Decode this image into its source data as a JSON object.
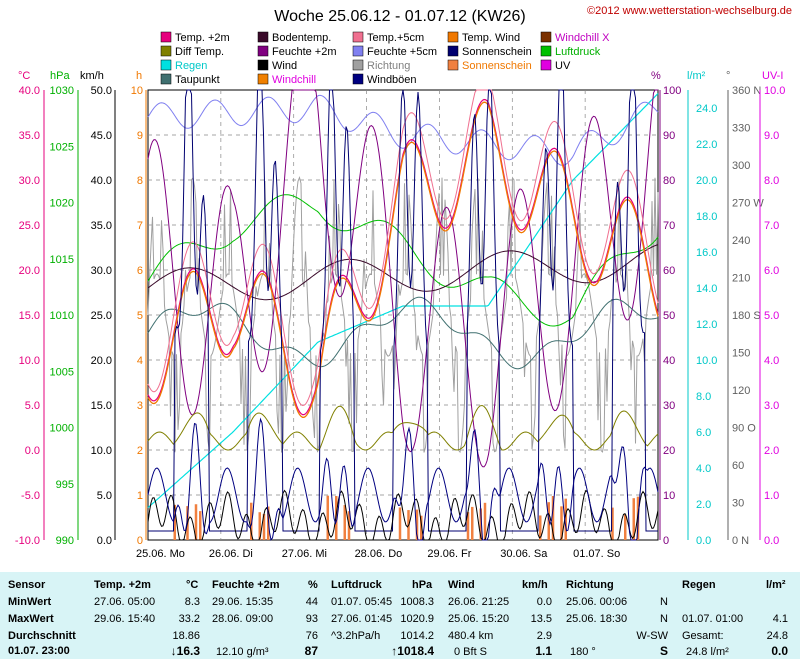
{
  "header": {
    "title": "Woche 25.06.12 - 01.07.12 (KW26)",
    "copyright": "©2012 www.wetterstation-wechselburg.de"
  },
  "legend": [
    {
      "label": "Temp. +2m",
      "color": "#e6007e"
    },
    {
      "label": "Bodentemp.",
      "color": "#3a0a2a"
    },
    {
      "label": "Temp.+5cm",
      "color": "#f07090"
    },
    {
      "label": "Temp. Wind",
      "color": "#f07800"
    },
    {
      "label": "Windchill X",
      "color": "#7a3000"
    },
    {
      "label": "Diff Temp.",
      "color": "#808000"
    },
    {
      "label": "Feuchte +2m",
      "color": "#800080"
    },
    {
      "label": "Feuchte +5cm",
      "color": "#8080f0"
    },
    {
      "label": "Sonnenschein",
      "color": "#000070"
    },
    {
      "label": "Luftdruck",
      "color": "#00c000"
    },
    {
      "label": "Regen",
      "color": "#00e0e0"
    },
    {
      "label": "Wind",
      "color": "#000000"
    },
    {
      "label": "Richtung",
      "color": "#a0a0a0"
    },
    {
      "label": "Sonnenschein",
      "color": "#f08040"
    },
    {
      "label": "UV",
      "color": "#e000e0"
    },
    {
      "label": "Taupunkt",
      "color": "#407070"
    },
    {
      "label": "Windchill",
      "color": "#f08000"
    },
    {
      "label": "Windböen",
      "color": "#000080"
    }
  ],
  "axes": {
    "unit_c": "°C",
    "unit_hpa": "hPa",
    "unit_kmh": "km/h",
    "unit_h": "h",
    "unit_pct": "%",
    "unit_lm2": "l/m²",
    "unit_deg": "°",
    "unit_uv": "UV-I",
    "temp_ticks": [
      "40.0",
      "35.0",
      "30.0",
      "25.0",
      "20.0",
      "15.0",
      "10.0",
      "5.0",
      "0.0",
      "-5.0",
      "-10.0"
    ],
    "hpa_ticks": [
      "1030",
      "1025",
      "1020",
      "1015",
      "1010",
      "1005",
      "1000",
      "995",
      "990"
    ],
    "kmh_ticks": [
      "50.0",
      "45.0",
      "40.0",
      "35.0",
      "30.0",
      "25.0",
      "20.0",
      "15.0",
      "10.0",
      "5.0",
      "0.0"
    ],
    "h_ticks": [
      "10",
      "9",
      "8",
      "7",
      "6",
      "5",
      "4",
      "3",
      "2",
      "1",
      "0"
    ],
    "pct_ticks": [
      "100",
      "90",
      "80",
      "70",
      "60",
      "50",
      "40",
      "30",
      "20",
      "10",
      "0"
    ],
    "rain_ticks": [
      "24.0",
      "22.0",
      "20.0",
      "18.0",
      "16.0",
      "14.0",
      "12.0",
      "10.0",
      "8.0",
      "6.0",
      "4.0",
      "2.0",
      "0.0"
    ],
    "dir_ticks": [
      "360 N",
      "330",
      "300",
      "270 W",
      "240",
      "210",
      "180 S",
      "150",
      "120",
      "90  O",
      "60",
      "30",
      "0   N"
    ],
    "uv_ticks": [
      "10.0",
      "9.0",
      "8.0",
      "7.0",
      "6.0",
      "5.0",
      "4.0",
      "3.0",
      "2.0",
      "1.0",
      "0.0"
    ],
    "days": [
      "25.06.  Mo",
      "26.06.  Di",
      "27.06.  Mi",
      "28.06.  Do",
      "29.06.  Fr",
      "30.06.  Sa",
      "01.07.  So"
    ]
  },
  "chart_data": {
    "type": "line",
    "title": "Woche 25.06.12 - 01.07.12 (KW26)",
    "x": [
      "25.06.",
      "26.06.",
      "27.06.",
      "28.06.",
      "29.06.",
      "30.06.",
      "01.07."
    ],
    "series": [
      {
        "name": "Temp. +2m",
        "unit": "°C",
        "values": [
          11,
          17,
          8.3,
          28,
          33.2,
          26,
          20
        ]
      },
      {
        "name": "Feuchte +2m",
        "unit": "%",
        "values": [
          62,
          50,
          93,
          48,
          44,
          60,
          86
        ]
      },
      {
        "name": "Luftdruck",
        "unit": "hPa",
        "values": [
          1013,
          1018,
          1020,
          1016,
          1012,
          1010,
          1018.4
        ]
      },
      {
        "name": "Regen",
        "unit": "l/m²",
        "values": [
          1.8,
          6.0,
          11.0,
          13.0,
          13.0,
          20.0,
          24.8
        ]
      },
      {
        "name": "Feuchte +5cm",
        "unit": "%",
        "values": [
          94,
          95,
          96,
          90,
          88,
          86,
          96
        ]
      }
    ]
  },
  "stats": {
    "headers": {
      "sensor": "Sensor",
      "temp": "Temp. +2m",
      "temp_u": "°C",
      "hum": "Feuchte +2m",
      "hum_u": "%",
      "press": "Luftdruck",
      "press_u": "hPa",
      "wind": "Wind",
      "wind_u": "km/h",
      "dir": "Richtung",
      "rain": "Regen",
      "rain_u": "l/m²"
    },
    "rows": {
      "min_label": "MinWert",
      "max_label": "MaxWert",
      "avg_label": "Durchschnitt",
      "now_label": "01.07. 23:00"
    },
    "temp": {
      "min_t": "27.06.  05:00",
      "min_v": "8.3",
      "max_t": "29.06.  15:40",
      "max_v": "33.2",
      "avg": "18.86",
      "now": "↓16.3"
    },
    "hum": {
      "min_t": "29.06.  15:35",
      "min_v": "44",
      "max_t": "28.06.  09:00",
      "max_v": "93",
      "avg": "76",
      "extra": "12.10 g/m³",
      "now": "87"
    },
    "press": {
      "min_t": "01.07.  05:45",
      "min_v": "1008.3",
      "max_t": "27.06.  01:45",
      "max_v": "1020.9",
      "trend": "^3.2hPa/h",
      "avg": "1014.2",
      "now": "↑1018.4"
    },
    "wind": {
      "min_t": "26.06.  21:25",
      "min_v": "0.0",
      "max_t": "25.06.  15:20",
      "max_v": "13.5",
      "dist": "480.4 km",
      "avg": "2.9",
      "bft": "0 Bft S",
      "now": "1.1"
    },
    "dir": {
      "min_t": "25.06.  00:06",
      "min_v": "N",
      "max_t": "25.06.  18:30",
      "max_v": "N",
      "avg": "W-SW",
      "deg": "180 °",
      "now": "S"
    },
    "rain": {
      "max_t": "01.07.  01:00",
      "max_v": "4.1",
      "total_label": "Gesamt:",
      "total": "24.8",
      "now_total": "24.8 l/m²",
      "now": "0.0"
    }
  }
}
